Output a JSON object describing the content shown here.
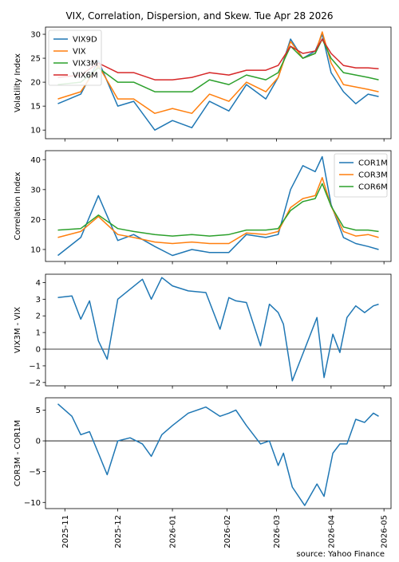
{
  "title": "VIX, Correlation, Dispersion, and Skew. Tue Apr 28 2026",
  "source": "source: Yahoo Finance",
  "x_ticks": [
    "2025-11",
    "2025-12",
    "2026-01",
    "2026-02",
    "2026-03",
    "2026-04",
    "2026-05"
  ],
  "colors": {
    "blue": "#1f77b4",
    "orange": "#ff7f0e",
    "green": "#2ca02c",
    "red": "#d62728"
  },
  "chart_data": [
    {
      "type": "line",
      "ylabel": "Volatility Index",
      "ylim": [
        8.2,
        31.5
      ],
      "yticks": [
        10,
        15,
        20,
        25,
        30
      ],
      "legend_position": "top-left",
      "x": [
        "2025-10-28",
        "2025-11-10",
        "2025-11-20",
        "2025-12-01",
        "2025-12-10",
        "2025-12-22",
        "2026-01-01",
        "2026-01-12",
        "2026-01-22",
        "2026-02-02",
        "2026-02-12",
        "2026-02-23",
        "2026-03-02",
        "2026-03-09",
        "2026-03-16",
        "2026-03-23",
        "2026-03-27",
        "2026-04-01",
        "2026-04-08",
        "2026-04-15",
        "2026-04-22",
        "2026-04-28"
      ],
      "series": [
        {
          "name": "VIX9D",
          "color": "#1f77b4",
          "values": [
            15.5,
            17.5,
            24.5,
            15.0,
            16.0,
            10.0,
            12.0,
            10.5,
            16.0,
            14.0,
            19.5,
            16.5,
            21.0,
            29.0,
            25.0,
            26.5,
            30.0,
            22.0,
            18.0,
            15.5,
            17.5,
            17.0
          ]
        },
        {
          "name": "VIX",
          "color": "#ff7f0e",
          "values": [
            16.5,
            18.0,
            23.5,
            16.5,
            16.5,
            13.5,
            14.5,
            13.5,
            17.5,
            16.0,
            20.0,
            18.0,
            21.0,
            28.5,
            25.0,
            26.0,
            30.5,
            24.0,
            19.5,
            19.0,
            18.5,
            18.0
          ]
        },
        {
          "name": "VIX3M",
          "color": "#2ca02c",
          "values": [
            19.5,
            20.0,
            23.0,
            20.0,
            20.0,
            18.0,
            18.0,
            18.0,
            20.5,
            19.5,
            21.5,
            20.5,
            22.0,
            27.5,
            25.0,
            26.0,
            29.0,
            25.0,
            22.0,
            21.5,
            21.0,
            20.5
          ]
        },
        {
          "name": "VIX6M",
          "color": "#d62728",
          "values": [
            21.0,
            21.5,
            24.0,
            22.0,
            22.0,
            20.5,
            20.5,
            21.0,
            22.0,
            21.5,
            22.5,
            22.5,
            23.5,
            27.5,
            26.0,
            26.5,
            29.0,
            26.0,
            23.5,
            23.0,
            23.0,
            22.8
          ]
        }
      ]
    },
    {
      "type": "line",
      "ylabel": "Correlation Index",
      "ylim": [
        6,
        43
      ],
      "yticks": [
        10,
        20,
        30,
        40
      ],
      "legend_position": "top-right",
      "x": [
        "2025-10-28",
        "2025-11-10",
        "2025-11-20",
        "2025-12-01",
        "2025-12-10",
        "2025-12-22",
        "2026-01-01",
        "2026-01-12",
        "2026-01-22",
        "2026-02-02",
        "2026-02-12",
        "2026-02-23",
        "2026-03-02",
        "2026-03-09",
        "2026-03-16",
        "2026-03-23",
        "2026-03-27",
        "2026-04-01",
        "2026-04-08",
        "2026-04-15",
        "2026-04-22",
        "2026-04-28"
      ],
      "series": [
        {
          "name": "COR1M",
          "color": "#1f77b4",
          "values": [
            8.0,
            14.0,
            28.0,
            13.0,
            15.0,
            11.0,
            8.0,
            10.0,
            9.0,
            9.0,
            15.0,
            14.0,
            15.0,
            30.0,
            38.0,
            36.0,
            41.0,
            25.0,
            14.0,
            12.0,
            11.0,
            10.0
          ]
        },
        {
          "name": "COR3M",
          "color": "#ff7f0e",
          "values": [
            14.0,
            16.0,
            21.0,
            15.0,
            14.0,
            12.5,
            12.0,
            12.5,
            12.0,
            12.0,
            15.5,
            15.0,
            16.0,
            24.0,
            27.0,
            28.0,
            34.0,
            24.5,
            16.0,
            14.5,
            15.0,
            14.0
          ]
        },
        {
          "name": "COR6M",
          "color": "#2ca02c",
          "values": [
            16.5,
            17.0,
            21.5,
            17.0,
            16.0,
            15.0,
            14.5,
            15.0,
            14.5,
            15.0,
            16.5,
            16.5,
            17.0,
            23.0,
            26.0,
            27.0,
            32.0,
            24.5,
            17.5,
            16.5,
            16.5,
            16.0
          ]
        }
      ]
    },
    {
      "type": "line",
      "ylabel": "VIX3M - VIX",
      "ylim": [
        -2.2,
        4.5
      ],
      "yticks": [
        -2,
        -1,
        0,
        1,
        2,
        3,
        4
      ],
      "zero_line": true,
      "x": [
        "2025-10-28",
        "2025-11-05",
        "2025-11-10",
        "2025-11-15",
        "2025-11-20",
        "2025-11-25",
        "2025-12-01",
        "2025-12-08",
        "2025-12-15",
        "2025-12-20",
        "2025-12-26",
        "2026-01-01",
        "2026-01-10",
        "2026-01-20",
        "2026-01-28",
        "2026-02-02",
        "2026-02-06",
        "2026-02-12",
        "2026-02-20",
        "2026-02-25",
        "2026-03-02",
        "2026-03-05",
        "2026-03-10",
        "2026-03-17",
        "2026-03-24",
        "2026-03-28",
        "2026-04-02",
        "2026-04-06",
        "2026-04-10",
        "2026-04-15",
        "2026-04-20",
        "2026-04-25",
        "2026-04-28"
      ],
      "series": [
        {
          "name": "",
          "color": "#1f77b4",
          "values": [
            3.1,
            3.2,
            1.8,
            2.9,
            0.5,
            -0.6,
            3.0,
            3.6,
            4.2,
            3.0,
            4.3,
            3.8,
            3.5,
            3.4,
            1.2,
            3.1,
            2.9,
            2.8,
            0.2,
            2.7,
            2.2,
            1.5,
            -1.9,
            0.0,
            1.9,
            -1.7,
            0.9,
            -0.2,
            1.9,
            2.6,
            2.2,
            2.6,
            2.7
          ]
        }
      ]
    },
    {
      "type": "line",
      "ylabel": "COR3M - COR1M",
      "ylim": [
        -11,
        7
      ],
      "yticks": [
        -10,
        -5,
        0,
        5
      ],
      "zero_line": true,
      "x": [
        "2025-10-28",
        "2025-11-05",
        "2025-11-10",
        "2025-11-15",
        "2025-11-20",
        "2025-11-25",
        "2025-12-01",
        "2025-12-08",
        "2025-12-15",
        "2025-12-20",
        "2025-12-26",
        "2026-01-01",
        "2026-01-10",
        "2026-01-20",
        "2026-01-28",
        "2026-02-02",
        "2026-02-06",
        "2026-02-12",
        "2026-02-20",
        "2026-02-25",
        "2026-03-02",
        "2026-03-05",
        "2026-03-10",
        "2026-03-17",
        "2026-03-24",
        "2026-03-28",
        "2026-04-02",
        "2026-04-06",
        "2026-04-10",
        "2026-04-15",
        "2026-04-20",
        "2026-04-25",
        "2026-04-28"
      ],
      "series": [
        {
          "name": "",
          "color": "#1f77b4",
          "values": [
            6.0,
            4.0,
            1.0,
            1.5,
            -2.0,
            -5.5,
            0.0,
            0.5,
            -0.5,
            -2.5,
            1.0,
            2.5,
            4.5,
            5.5,
            4.0,
            4.5,
            5.0,
            2.5,
            -0.5,
            0.0,
            -4.0,
            -2.0,
            -7.5,
            -10.5,
            -7.0,
            -9.0,
            -2.0,
            -0.5,
            -0.5,
            3.5,
            3.0,
            4.5,
            4.0
          ]
        }
      ]
    }
  ]
}
